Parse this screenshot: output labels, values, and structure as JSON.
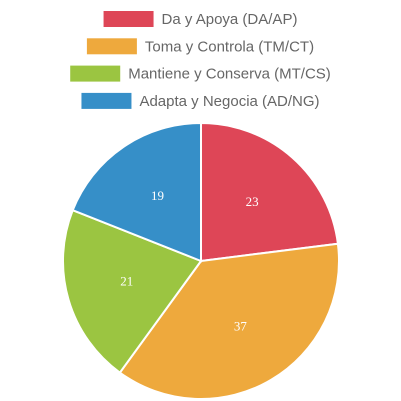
{
  "chart_data": {
    "type": "pie",
    "categories": [
      "Da y Apoya (DA/AP)",
      "Toma y Controla (TM/CT)",
      "Mantiene y Conserva (MT/CS)",
      "Adapta y Negocia (AD/NG)"
    ],
    "values": [
      23,
      37,
      21,
      19
    ],
    "colors": [
      "#de4657",
      "#eea93d",
      "#9bc541",
      "#368fc8"
    ],
    "legend": "top"
  }
}
